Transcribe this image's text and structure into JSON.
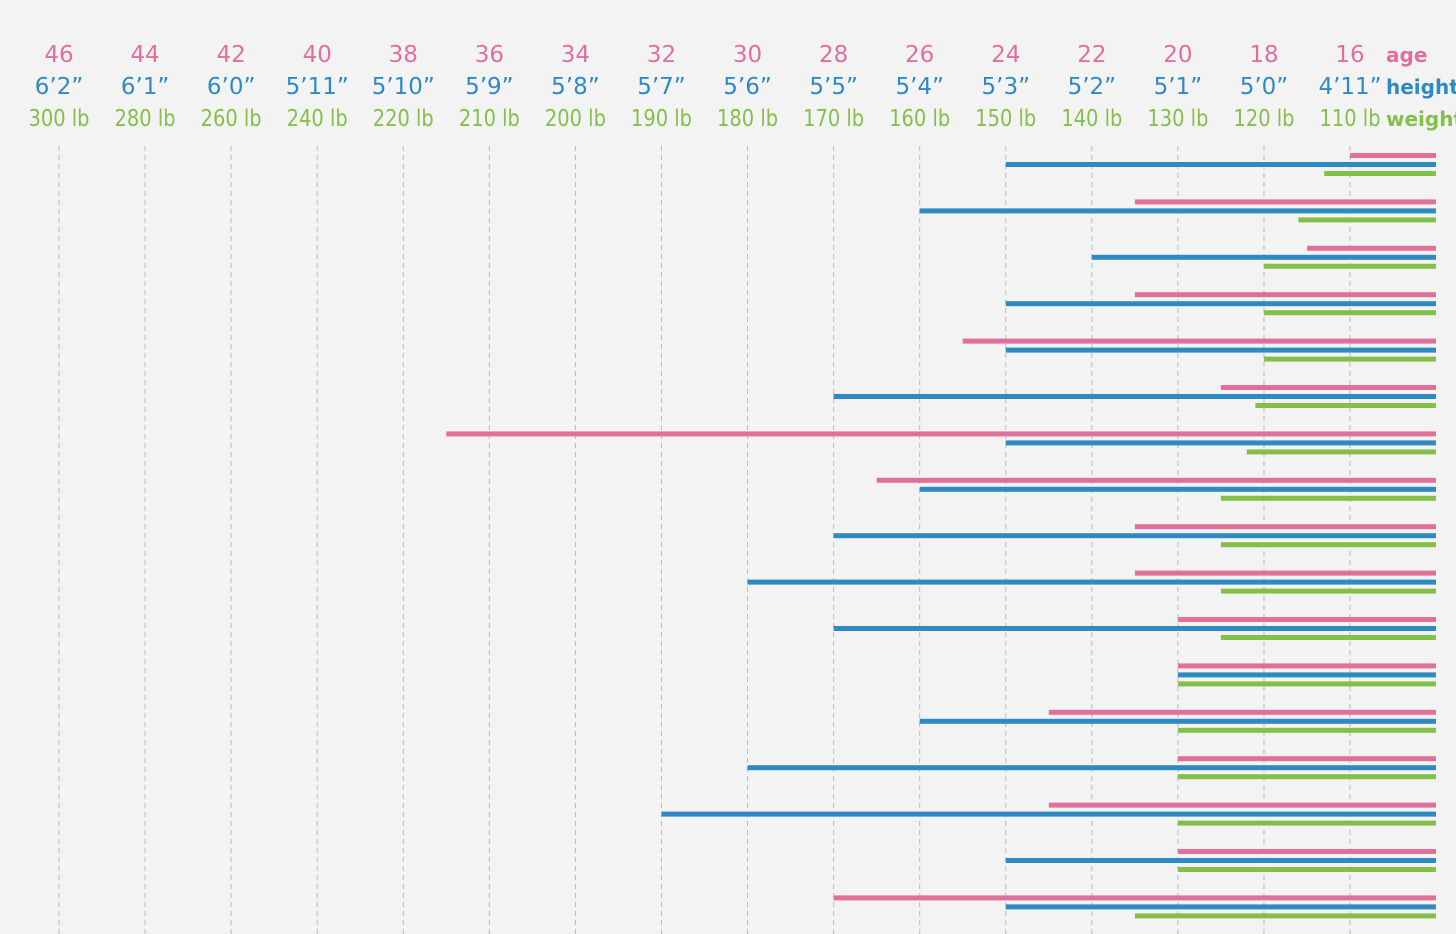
{
  "chart_data": {
    "type": "bar",
    "orientation": "horizontal",
    "axis_direction": "right-to-left",
    "grid": true,
    "legend_placement": "top-right",
    "colors": {
      "age": "#e0709b",
      "height": "#2f8ac1",
      "weight": "#84bf4a"
    },
    "axes": {
      "age": [
        "46",
        "44",
        "42",
        "40",
        "38",
        "36",
        "34",
        "32",
        "30",
        "28",
        "26",
        "24",
        "22",
        "20",
        "18",
        "16"
      ],
      "height": [
        "6’2”",
        "6’1”",
        "6’0”",
        "5’11”",
        "5’10”",
        "5’9”",
        "5’8”",
        "5’7”",
        "5’6”",
        "5’5”",
        "5’4”",
        "5’3”",
        "5’2”",
        "5’1”",
        "5’0”",
        "4’11”"
      ],
      "weight": [
        "300 lb",
        "280 lb",
        "260 lb",
        "240 lb",
        "220 lb",
        "210 lb",
        "200 lb",
        "190 lb",
        "180 lb",
        "170 lb",
        "160 lb",
        "150 lb",
        "140 lb",
        "130 lb",
        "120 lb",
        "110 lb"
      ]
    },
    "legend": {
      "age": "age",
      "height": "height",
      "weight": "weight"
    },
    "series_note": "each row: age (years), height (inches), weight (lb)",
    "rows": [
      {
        "age": 16,
        "height": 63,
        "weight": 113
      },
      {
        "age": 21,
        "height": 64,
        "weight": 116
      },
      {
        "age": 17,
        "height": 62,
        "weight": 120
      },
      {
        "age": 21,
        "height": 63,
        "weight": 120
      },
      {
        "age": 25,
        "height": 63,
        "weight": 120
      },
      {
        "age": 19,
        "height": 65,
        "weight": 121
      },
      {
        "age": 37,
        "height": 63,
        "weight": 122
      },
      {
        "age": 27,
        "height": 64,
        "weight": 125
      },
      {
        "age": 21,
        "height": 65,
        "weight": 125
      },
      {
        "age": 21,
        "height": 66,
        "weight": 125
      },
      {
        "age": 20,
        "height": 65,
        "weight": 125
      },
      {
        "age": 20,
        "height": 61,
        "weight": 130
      },
      {
        "age": 23,
        "height": 64,
        "weight": 130
      },
      {
        "age": 20,
        "height": 66,
        "weight": 130
      },
      {
        "age": 23,
        "height": 67,
        "weight": 130
      },
      {
        "age": 20,
        "height": 63,
        "weight": 130
      },
      {
        "age": 28,
        "height": 63,
        "weight": 135
      }
    ]
  }
}
